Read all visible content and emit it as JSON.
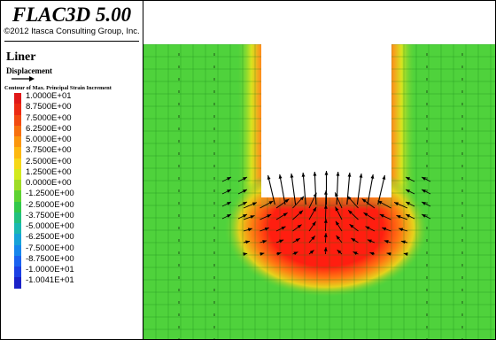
{
  "app": {
    "title": "FLAC3D 5.00",
    "copyright": "©2012 Itasca Consulting Group, Inc."
  },
  "legend": {
    "group_title": "Liner",
    "displacement_label": "Displacement",
    "displacement_icon": "arrow-right-icon",
    "contour_label": "Contour of Max. Principal Strain Increment",
    "levels": [
      {
        "label": "1.0000E+01",
        "color": "#e01818"
      },
      {
        "label": "8.7500E+00",
        "color": "#ec2a12"
      },
      {
        "label": "7.5000E+00",
        "color": "#f24a10"
      },
      {
        "label": "6.2500E+00",
        "color": "#f7700d"
      },
      {
        "label": "5.0000E+00",
        "color": "#fb960c"
      },
      {
        "label": "3.7500E+00",
        "color": "#fdb810"
      },
      {
        "label": "2.5000E+00",
        "color": "#f6d818"
      },
      {
        "label": "1.2500E+00",
        "color": "#d2ea1e"
      },
      {
        "label": "0.0000E+00",
        "color": "#9edc26"
      },
      {
        "label": "-1.2500E+00",
        "color": "#5ed232"
      },
      {
        "label": "-2.5000E+00",
        "color": "#32c84a"
      },
      {
        "label": "-3.7500E+00",
        "color": "#22c07e"
      },
      {
        "label": "-5.0000E+00",
        "color": "#1ab8b0"
      },
      {
        "label": "-6.2500E+00",
        "color": "#16a2d8"
      },
      {
        "label": "-7.5000E+00",
        "color": "#1686ec"
      },
      {
        "label": "-8.7500E+00",
        "color": "#1a62f0"
      },
      {
        "label": "-1.0000E+01",
        "color": "#1c40e4"
      },
      {
        "label": "-1.0041E+01",
        "color": "#1a22c8"
      }
    ]
  },
  "plot": {
    "background_color": "#4fd23c",
    "grid_color": "#157a15",
    "hot_color": "#ff1e10",
    "wall_edge_color": "#ff8a1c"
  }
}
